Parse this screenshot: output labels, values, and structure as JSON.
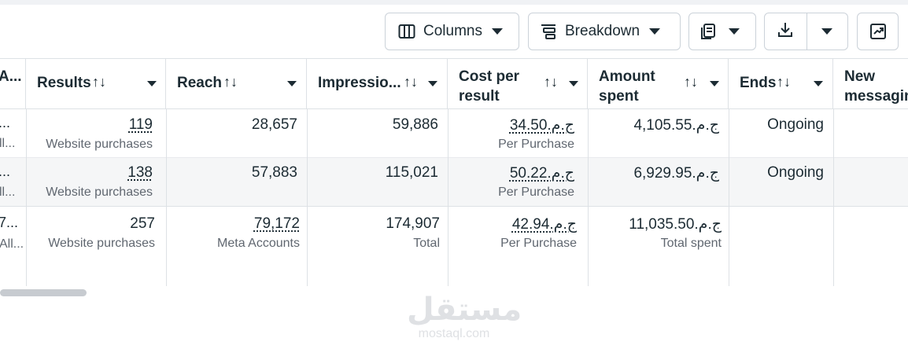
{
  "toolbar": {
    "columns_label": "Columns",
    "breakdown_label": "Breakdown",
    "icons": [
      "columns-icon",
      "breakdown-icon",
      "reports-icon",
      "download-icon",
      "chart-icon"
    ]
  },
  "table": {
    "headers": {
      "prev": "A...",
      "results": "Results",
      "reach": "Reach",
      "impressions": "Impressio...",
      "cost_line1": "Cost per",
      "cost_line2": "result",
      "amount_line1": "Amount",
      "amount_line2": "spent",
      "ends": "Ends",
      "new_line1": "New",
      "new_line2": "messagin"
    },
    "rows": [
      {
        "prev": "...",
        "prev_sub": "ll...",
        "results": "119",
        "results_sub": "Website purchases",
        "reach": "28,657",
        "impressions": "59,886",
        "cost": "ج.م.34.50",
        "cost_sub": "Per Purchase",
        "amount": "ج.م.4,105.55",
        "ends": "Ongoing"
      },
      {
        "prev": "...",
        "prev_sub": "ll...",
        "results": "138",
        "results_sub": "Website purchases",
        "reach": "57,883",
        "impressions": "115,021",
        "cost": "ج.م.50.22",
        "cost_sub": "Per Purchase",
        "amount": "ج.م.6,929.95",
        "ends": "Ongoing"
      }
    ],
    "total": {
      "prev": "7...",
      "prev_sub": "All...",
      "results": "257",
      "results_sub": "Website purchases",
      "reach": "79,172",
      "reach_sub": "Meta Accounts",
      "impressions": "174,907",
      "impressions_sub": "Total",
      "cost": "ج.م.42.94",
      "cost_sub": "Per Purchase",
      "amount": "ج.م.11,035.50",
      "amount_sub": "Total spent"
    }
  },
  "watermark": {
    "arabic": "مستقل",
    "latin": "mostaql.com"
  },
  "colors": {
    "text": "#1c2b33",
    "secondary_text": "#606770",
    "border": "#dde1e5",
    "row_alt": "#f5f6f7",
    "scrollbar": "#c7cbd0"
  }
}
